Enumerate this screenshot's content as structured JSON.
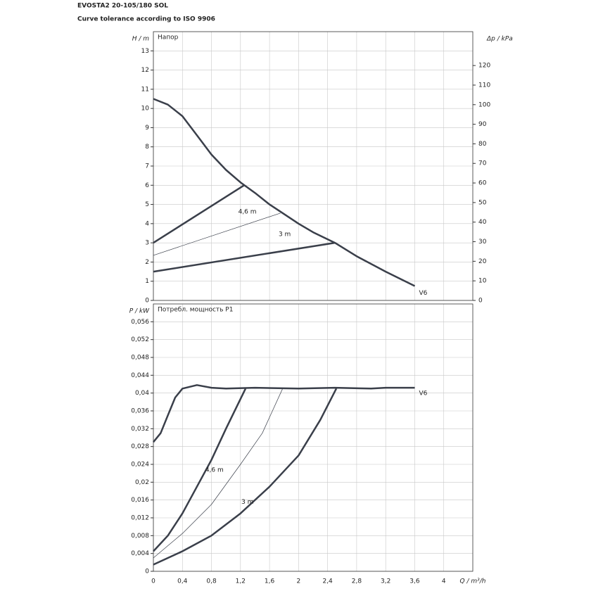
{
  "title": "EVOSTA2 20-105/180 SOL",
  "subtitle": "Curve tolerance according to ISO 9906",
  "chart_data": [
    {
      "type": "line",
      "title": "Напор",
      "ylabel": "H / m",
      "y2label": "Δp / kPa",
      "xlim": [
        0,
        4.4
      ],
      "ylim": [
        0,
        14
      ],
      "y2lim": [
        0,
        137.3
      ],
      "xticks": [
        0,
        0.4,
        0.8,
        1.2,
        1.6,
        2,
        2.4,
        2.8,
        3.2,
        3.6,
        4
      ],
      "yticks": [
        0,
        1,
        2,
        3,
        4,
        5,
        6,
        7,
        8,
        9,
        10,
        11,
        12,
        13
      ],
      "y2ticks": [
        0,
        10,
        20,
        30,
        40,
        50,
        60,
        70,
        80,
        90,
        100,
        110,
        120
      ],
      "grid": true,
      "series": [
        {
          "name": "V6",
          "color": "#3a3f4a",
          "line_width": 2.5,
          "x": [
            0,
            0.2,
            0.4,
            0.6,
            0.8,
            1.0,
            1.2,
            1.4,
            1.6,
            1.8,
            2.0,
            2.2,
            2.5,
            2.8,
            3.2,
            3.6
          ],
          "values": [
            10.5,
            10.2,
            9.6,
            8.6,
            7.6,
            6.8,
            6.15,
            5.6,
            5.0,
            4.5,
            4.0,
            3.55,
            3.0,
            2.3,
            1.5,
            0.75
          ]
        },
        {
          "color": "#3a3f4a",
          "line_width": 2.5,
          "x": [
            0,
            1.25
          ],
          "values": [
            3.0,
            6.0
          ]
        },
        {
          "name": "4,6 m",
          "color": "#3a3f4a",
          "line_width": 0.7,
          "x": [
            0,
            1.75
          ],
          "values": [
            2.35,
            4.55
          ]
        },
        {
          "name": "3 m",
          "color": "#3a3f4a",
          "line_width": 2.5,
          "x": [
            0,
            2.5
          ],
          "values": [
            1.5,
            3.0
          ]
        }
      ]
    },
    {
      "type": "line",
      "title": "Потребл. мощность P1",
      "ylabel": "P / kW",
      "xlabel": "Q / m³/h",
      "xlim": [
        0,
        4.4
      ],
      "ylim": [
        0,
        0.06
      ],
      "xticks": [
        0,
        {
          "value": 0.4,
          "label": "0,4"
        },
        {
          "value": 0.8,
          "label": "0,8"
        },
        {
          "value": 1.2,
          "label": "1,2"
        },
        {
          "value": 1.6,
          "label": "1,6"
        },
        2,
        {
          "value": 2.4,
          "label": "2,4"
        },
        {
          "value": 2.8,
          "label": "2,8"
        },
        {
          "value": 3.2,
          "label": "3,2"
        },
        {
          "value": 3.6,
          "label": "3,6"
        },
        4
      ],
      "yticks": [
        0,
        {
          "value": 0.004,
          "label": "0,004"
        },
        {
          "value": 0.008,
          "label": "0,008"
        },
        {
          "value": 0.012,
          "label": "0,012"
        },
        {
          "value": 0.016,
          "label": "0,016"
        },
        {
          "value": 0.02,
          "label": "0,02"
        },
        {
          "value": 0.024,
          "label": "0,024"
        },
        {
          "value": 0.028,
          "label": "0,028"
        },
        {
          "value": 0.032,
          "label": "0,032"
        },
        {
          "value": 0.036,
          "label": "0,036"
        },
        {
          "value": 0.04,
          "label": "0,04"
        },
        {
          "value": 0.044,
          "label": "0,044"
        },
        {
          "value": 0.048,
          "label": "0,048"
        },
        {
          "value": 0.052,
          "label": "0,052"
        },
        {
          "value": 0.056,
          "label": "0,056"
        }
      ],
      "grid": true,
      "series": [
        {
          "name": "V6",
          "color": "#3a3f4a",
          "line_width": 2.5,
          "x": [
            0,
            0.1,
            0.2,
            0.3,
            0.4,
            0.6,
            0.8,
            1.0,
            1.4,
            2.0,
            2.5,
            3.0,
            3.2,
            3.6
          ],
          "values": [
            0.029,
            0.031,
            0.035,
            0.039,
            0.041,
            0.0418,
            0.0412,
            0.041,
            0.0412,
            0.041,
            0.0412,
            0.041,
            0.0412,
            0.0412
          ]
        },
        {
          "color": "#3a3f4a",
          "line_width": 2.5,
          "x": [
            0,
            0.2,
            0.4,
            0.6,
            0.8,
            1.0,
            1.27
          ],
          "values": [
            0.0045,
            0.008,
            0.013,
            0.019,
            0.025,
            0.032,
            0.041
          ]
        },
        {
          "name": "4,6 m",
          "color": "#3a3f4a",
          "line_width": 0.7,
          "x": [
            0,
            0.4,
            0.8,
            1.2,
            1.5,
            1.78
          ],
          "values": [
            0.003,
            0.0085,
            0.015,
            0.024,
            0.031,
            0.041
          ]
        },
        {
          "name": "3 m",
          "color": "#3a3f4a",
          "line_width": 2.5,
          "x": [
            0,
            0.4,
            0.8,
            1.2,
            1.6,
            2.0,
            2.3,
            2.52
          ],
          "values": [
            0.0015,
            0.0045,
            0.008,
            0.013,
            0.019,
            0.026,
            0.034,
            0.041
          ]
        }
      ]
    }
  ]
}
